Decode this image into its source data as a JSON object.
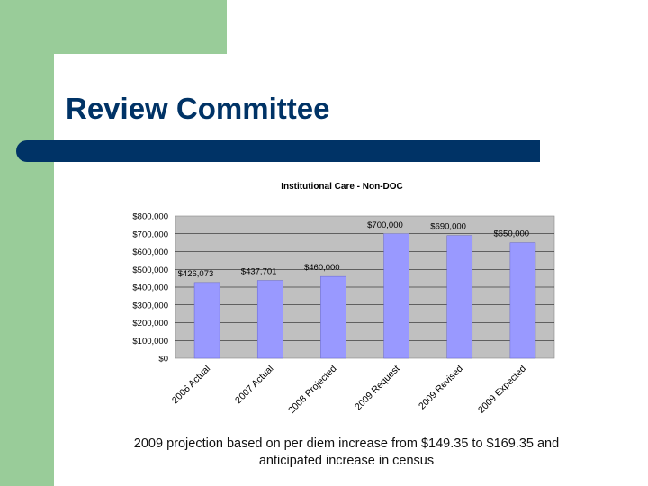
{
  "slide": {
    "title": "Review Committee",
    "caption_line1": "2009 projection based on per diem increase from $149.35 to $169.35 and",
    "caption_line2": "anticipated increase in census"
  },
  "colors": {
    "green": "#99cc99",
    "navy": "#003366",
    "bar": "#9999ff",
    "plot_bg": "#c0c0c0"
  },
  "chart_data": {
    "type": "bar",
    "title": "Institutional Care - Non-DOC",
    "categories": [
      "2006 Actual",
      "2007 Actual",
      "2008 Projected",
      "2009 Request",
      "2009 Revised",
      "2009 Expected"
    ],
    "values": [
      426073,
      437701,
      460000,
      700000,
      690000,
      650000
    ],
    "data_labels": [
      "$426,073",
      "$437,701",
      "$460,000",
      "$700,000",
      "$690,000",
      "$650,000"
    ],
    "y_ticks": [
      "$0",
      "$100,000",
      "$200,000",
      "$300,000",
      "$400,000",
      "$500,000",
      "$600,000",
      "$700,000",
      "$800,000"
    ],
    "ylim": [
      0,
      800000
    ],
    "xlabel": "",
    "ylabel": "",
    "grid": true,
    "legend": "none"
  }
}
